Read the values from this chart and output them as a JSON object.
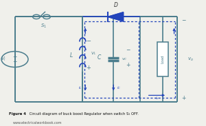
{
  "bg_color": "#f0f0eb",
  "teal": "#4a7c8c",
  "blue": "#2244bb",
  "title_bold": "Figure 4",
  "title_rest": " Circuit diagram of buck boost Regulator when switch S₁ OFF.",
  "url": "www.electricalworkbook.com",
  "L": 0.07,
  "R": 0.86,
  "B": 0.2,
  "T": 0.9,
  "M1": 0.4,
  "M2": 0.68
}
